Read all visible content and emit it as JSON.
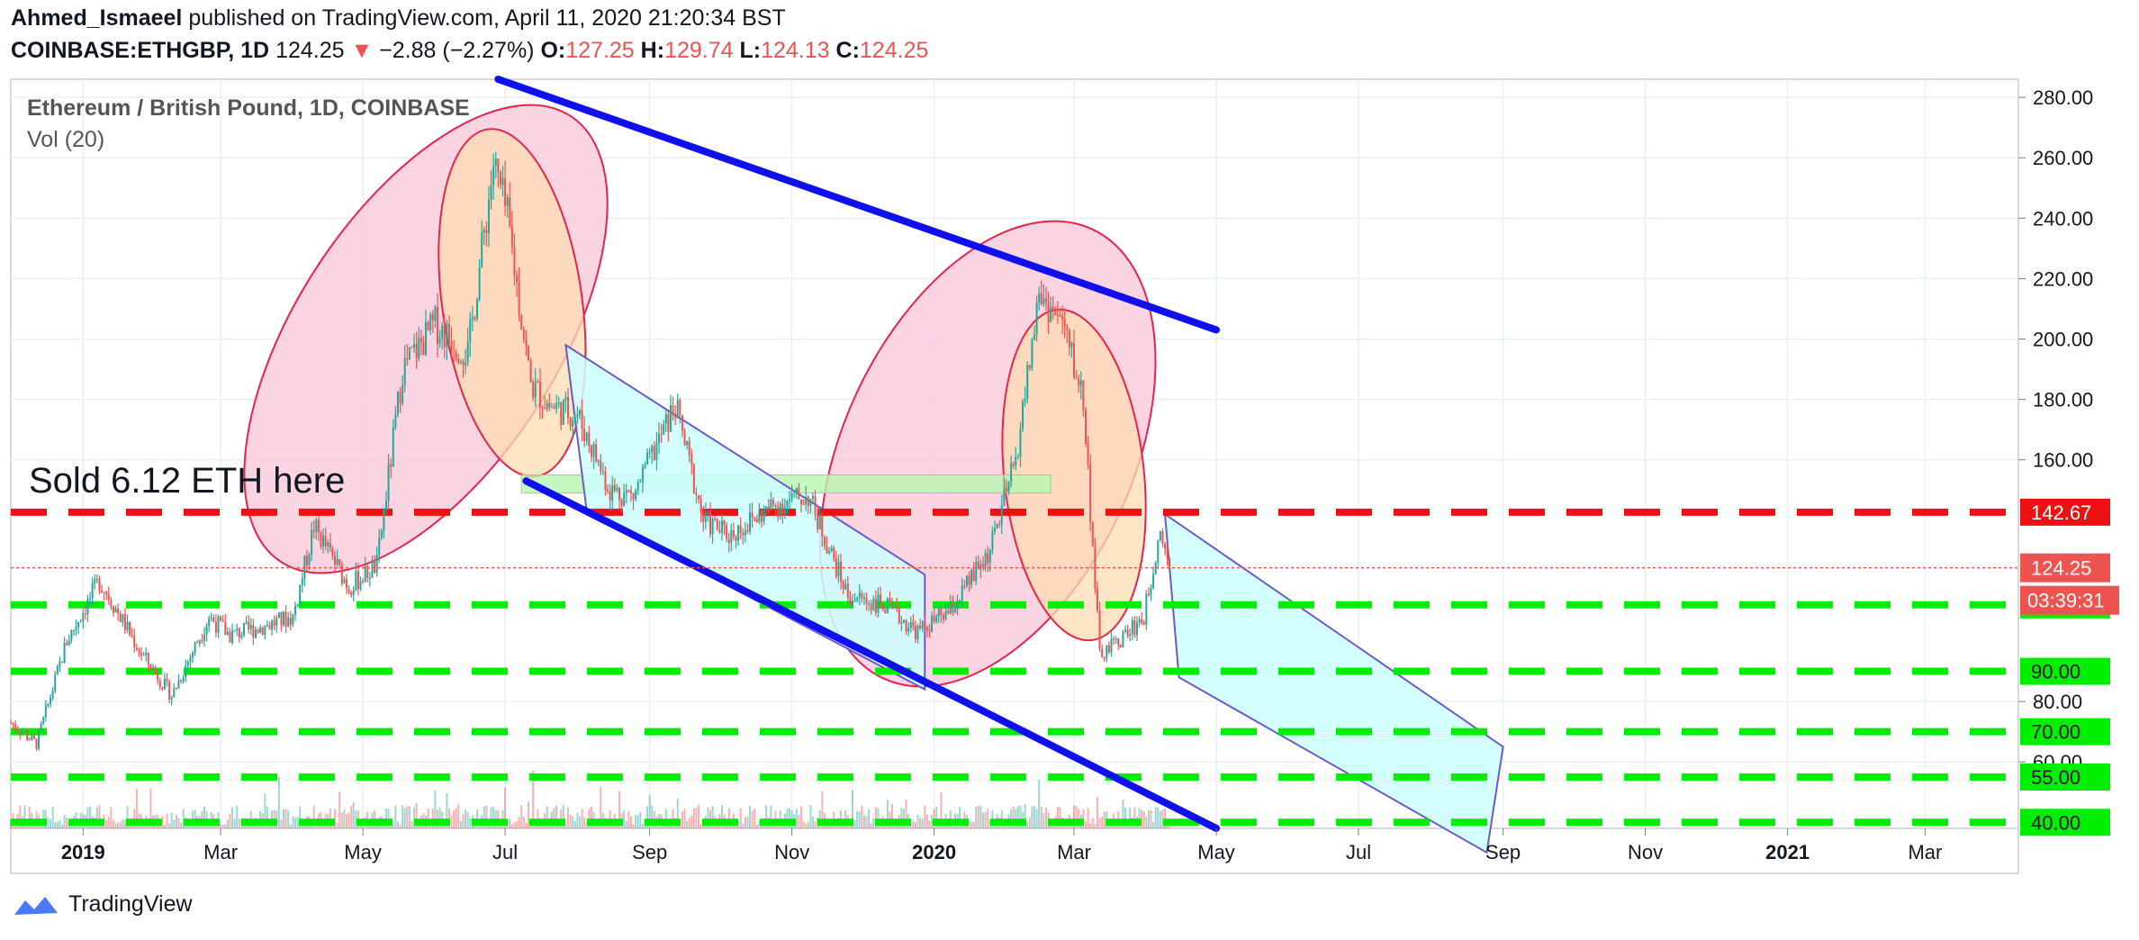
{
  "header": {
    "author": "Ahmed_Ismaeel",
    "published": "published on TradingView.com, April 11, 2020 21:20:34 BST",
    "symbol": "COINBASE:ETHGBP, 1D",
    "last": "124.25",
    "change": "−2.88 (−2.27%)",
    "o_label": "O:",
    "o_value": "127.25",
    "h_label": "H:",
    "h_value": "129.74",
    "l_label": "L:",
    "l_value": "124.13",
    "c_label": "C:",
    "c_value": "124.25"
  },
  "legend": {
    "title": "Ethereum / British Pound, 1D, COINBASE",
    "volume": "Vol (20)"
  },
  "annotation": "Sold 6.12 ETH here",
  "footer": {
    "brand": "TradingView"
  },
  "colors": {
    "up": "#26a69a",
    "down": "#ef5350",
    "trend": "#1010ee",
    "support": "#00ee00",
    "resistance": "#ee1111",
    "channel": "#ccffff",
    "zone": "#b9f5b0",
    "ellipse_pink": "#f9c6d8",
    "ellipse_orange": "#fddcb3"
  },
  "chart_data": {
    "type": "candlestick",
    "y_axis": {
      "ticks": [
        280,
        260,
        240,
        220,
        200,
        180,
        160,
        80,
        60
      ],
      "tick_labels": [
        "280.00",
        "260.00",
        "240.00",
        "220.00",
        "200.00",
        "180.00",
        "160.00",
        "80.00",
        "60.00"
      ],
      "range": [
        38,
        286
      ]
    },
    "x_axis": {
      "tick_labels": [
        "2019",
        "Mar",
        "May",
        "Jul",
        "Sep",
        "Nov",
        "2020",
        "Mar",
        "May",
        "Jul",
        "Sep",
        "Nov",
        "2021",
        "Mar"
      ],
      "tick_dates": [
        "2019-01-01",
        "2019-03-01",
        "2019-05-01",
        "2019-07-01",
        "2019-09-01",
        "2019-11-01",
        "2020-01-01",
        "2020-03-01",
        "2020-05-01",
        "2020-07-01",
        "2020-09-01",
        "2020-11-01",
        "2021-01-01",
        "2021-03-01"
      ],
      "range": [
        "2018-12-01",
        "2021-04-10"
      ]
    },
    "horizontal_levels": [
      {
        "price": 142.67,
        "label": "142.67",
        "kind": "resistance"
      },
      {
        "price": 112.0,
        "label": "112.00",
        "kind": "support"
      },
      {
        "price": 90.0,
        "label": "90.00",
        "kind": "support"
      },
      {
        "price": 70.0,
        "label": "70.00",
        "kind": "support"
      },
      {
        "price": 55.0,
        "label": "55.00",
        "kind": "support"
      },
      {
        "price": 40.0,
        "label": "40.00",
        "kind": "support"
      }
    ],
    "last_price": {
      "price": 124.25,
      "label": "124.25",
      "countdown": "03:39:31"
    },
    "trend_lines": [
      {
        "name": "upper",
        "from": [
          "2019-06-28",
          286
        ],
        "to": [
          "2020-05-01",
          203
        ]
      },
      {
        "name": "lower",
        "from": [
          "2019-07-10",
          153
        ],
        "to": [
          "2020-05-01",
          38
        ]
      }
    ],
    "support_zone": {
      "from": "2019-07-08",
      "to": "2020-02-20",
      "top": 155,
      "bottom": 149
    },
    "channels": [
      {
        "name": "channel-1",
        "points": [
          [
            "2019-07-27",
            198
          ],
          [
            "2019-12-28",
            122
          ],
          [
            "2019-12-28",
            84
          ],
          [
            "2019-08-05",
            143
          ]
        ]
      },
      {
        "name": "channel-2",
        "points": [
          [
            "2020-04-09",
            142
          ],
          [
            "2020-09-01",
            65
          ],
          [
            "2020-08-25",
            30
          ],
          [
            "2020-04-15",
            88
          ]
        ]
      }
    ],
    "ellipses": [
      {
        "name": "ellipse-1",
        "center": [
          "2019-05-28",
          200
        ],
        "rx_days": 56,
        "ry": 88,
        "tilt": 33,
        "fill": "pink"
      },
      {
        "name": "ellipse-2",
        "center": [
          "2019-07-04",
          212
        ],
        "rx_days": 30,
        "ry": 58,
        "tilt": -8,
        "fill": "orange"
      },
      {
        "name": "ellipse-3",
        "center": [
          "2020-01-24",
          162
        ],
        "rx_days": 62,
        "ry": 82,
        "tilt": 25,
        "fill": "pink"
      },
      {
        "name": "ellipse-4",
        "center": [
          "2020-03-01",
          155
        ],
        "rx_days": 30,
        "ry": 55,
        "tilt": -6,
        "fill": "orange"
      }
    ],
    "series": [
      {
        "name": "ETHGBP",
        "ohlc_keypoints": [
          [
            "2018-12-01",
            73
          ],
          [
            "2018-12-12",
            66
          ],
          [
            "2018-12-25",
            100
          ],
          [
            "2019-01-08",
            120
          ],
          [
            "2019-01-12",
            115
          ],
          [
            "2019-01-25",
            97
          ],
          [
            "2019-02-08",
            82
          ],
          [
            "2019-02-24",
            108
          ],
          [
            "2019-03-05",
            102
          ],
          [
            "2019-03-20",
            105
          ],
          [
            "2019-04-01",
            108
          ],
          [
            "2019-04-10",
            138
          ],
          [
            "2019-04-25",
            118
          ],
          [
            "2019-05-07",
            125
          ],
          [
            "2019-05-18",
            190
          ],
          [
            "2019-06-01",
            205
          ],
          [
            "2019-06-15",
            195
          ],
          [
            "2019-06-26",
            258
          ],
          [
            "2019-07-02",
            240
          ],
          [
            "2019-07-12",
            185
          ],
          [
            "2019-07-20",
            178
          ],
          [
            "2019-08-01",
            175
          ],
          [
            "2019-08-15",
            150
          ],
          [
            "2019-08-25",
            148
          ],
          [
            "2019-09-12",
            178
          ],
          [
            "2019-09-24",
            140
          ],
          [
            "2019-10-05",
            135
          ],
          [
            "2019-10-25",
            145
          ],
          [
            "2019-11-08",
            148
          ],
          [
            "2019-11-25",
            115
          ],
          [
            "2019-12-10",
            112
          ],
          [
            "2019-12-25",
            103
          ],
          [
            "2020-01-08",
            110
          ],
          [
            "2020-01-25",
            130
          ],
          [
            "2020-02-05",
            160
          ],
          [
            "2020-02-15",
            215
          ],
          [
            "2020-02-25",
            205
          ],
          [
            "2020-03-05",
            180
          ],
          [
            "2020-03-12",
            95
          ],
          [
            "2020-03-20",
            100
          ],
          [
            "2020-03-31",
            108
          ],
          [
            "2020-04-07",
            138
          ],
          [
            "2020-04-11",
            124.25
          ]
        ]
      }
    ]
  }
}
